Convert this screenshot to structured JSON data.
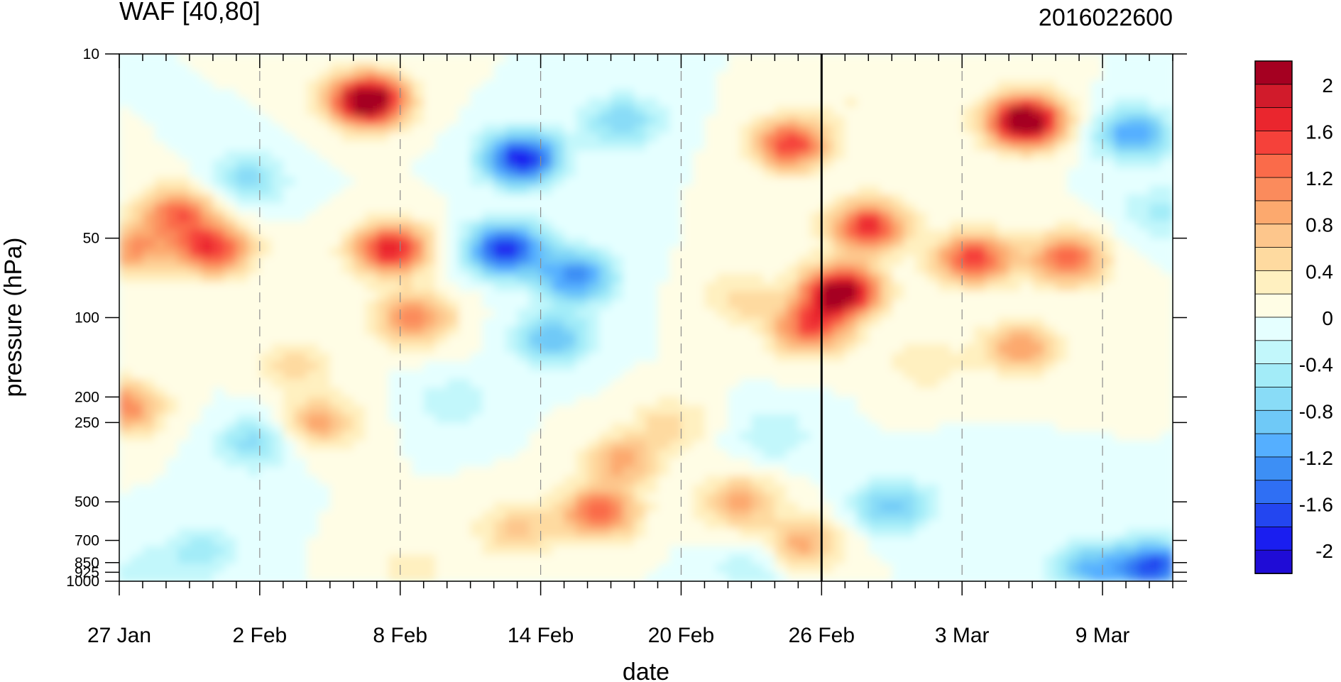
{
  "chart_data": {
    "type": "heatmap",
    "subtype": "filled-contour",
    "title": "WAF [40,80]",
    "right_title": "2016022600",
    "xlabel": "date",
    "ylabel": "pressure (hPa)",
    "x_ticks": [
      {
        "label": "27 Jan",
        "day": 0
      },
      {
        "label": "2 Feb",
        "day": 6
      },
      {
        "label": "8 Feb",
        "day": 12
      },
      {
        "label": "14 Feb",
        "day": 18
      },
      {
        "label": "20 Feb",
        "day": 24
      },
      {
        "label": "26 Feb",
        "day": 30
      },
      {
        "label": "3 Mar",
        "day": 36
      },
      {
        "label": "9 Mar",
        "day": 42
      }
    ],
    "x_range_days": [
      0,
      45
    ],
    "y_ticks": [
      {
        "label": "10",
        "p": 10
      },
      {
        "label": "50",
        "p": 50
      },
      {
        "label": "100",
        "p": 100
      },
      {
        "label": "200",
        "p": 200
      },
      {
        "label": "250",
        "p": 250
      },
      {
        "label": "500",
        "p": 500
      },
      {
        "label": "700",
        "p": 700
      },
      {
        "label": "850",
        "p": 850
      },
      {
        "label": "925",
        "p": 925
      },
      {
        "label": "1000",
        "p": 1000
      }
    ],
    "y_range_hpa": [
      1000,
      10
    ],
    "y_scale": "log",
    "vertical_marker_date": "26 Feb",
    "colorbar": {
      "labels": [
        "2",
        "1.6",
        "1.2",
        "0.8",
        "0.4",
        "0",
        "-0.4",
        "-0.8",
        "-1.2",
        "-1.6",
        "-2"
      ],
      "levels": [
        2.2,
        2.0,
        1.8,
        1.6,
        1.4,
        1.2,
        1.0,
        0.8,
        0.6,
        0.4,
        0.2,
        0.0,
        -0.2,
        -0.4,
        -0.6,
        -0.8,
        -1.0,
        -1.2,
        -1.4,
        -1.6,
        -1.8,
        -2.0,
        -2.2
      ],
      "colors": [
        "#a50021",
        "#d11b2b",
        "#ea262e",
        "#f5413a",
        "#fa6b4a",
        "#fb8b5c",
        "#fca96e",
        "#fdc68c",
        "#fedaa0",
        "#fff0c0",
        "#fffde5",
        "#e5ffff",
        "#c2f7fb",
        "#a3ecf8",
        "#89dcf7",
        "#6fc9f7",
        "#55afff",
        "#3d8ff5",
        "#2f6ff4",
        "#2346f0",
        "#1a1ef0",
        "#1f0cd6"
      ]
    },
    "anomalies": [
      {
        "day": 2.5,
        "p": 40,
        "v": 1.3
      },
      {
        "day": 4.0,
        "p": 55,
        "v": 1.6
      },
      {
        "day": 0.2,
        "p": 220,
        "v": 1.2
      },
      {
        "day": 0.5,
        "p": 55,
        "v": 1.0
      },
      {
        "day": 10.6,
        "p": 15,
        "v": 2.6
      },
      {
        "day": 11.6,
        "p": 55,
        "v": 1.8
      },
      {
        "day": 12.6,
        "p": 100,
        "v": 1.2
      },
      {
        "day": 8.5,
        "p": 250,
        "v": 0.9
      },
      {
        "day": 7.5,
        "p": 150,
        "v": 0.5
      },
      {
        "day": 5.5,
        "p": 30,
        "v": -0.7
      },
      {
        "day": 5.8,
        "p": 300,
        "v": -0.7
      },
      {
        "day": 17.2,
        "p": 25,
        "v": -2.0
      },
      {
        "day": 16.5,
        "p": 55,
        "v": -1.9
      },
      {
        "day": 19.5,
        "p": 70,
        "v": -1.4
      },
      {
        "day": 18.5,
        "p": 120,
        "v": -1.0
      },
      {
        "day": 21.5,
        "p": 18,
        "v": -0.8
      },
      {
        "day": 14.3,
        "p": 210,
        "v": -0.4
      },
      {
        "day": 20.5,
        "p": 550,
        "v": 1.4
      },
      {
        "day": 21.5,
        "p": 350,
        "v": 0.9
      },
      {
        "day": 17.0,
        "p": 640,
        "v": 0.7
      },
      {
        "day": 12.5,
        "p": 900,
        "v": 0.3
      },
      {
        "day": 23.5,
        "p": 250,
        "v": 0.5
      },
      {
        "day": 26.5,
        "p": 85,
        "v": 0.5
      },
      {
        "day": 28.0,
        "p": 280,
        "v": -0.4
      },
      {
        "day": 26.5,
        "p": 500,
        "v": 0.9
      },
      {
        "day": 28.7,
        "p": 22,
        "v": 1.6
      },
      {
        "day": 29.5,
        "p": 110,
        "v": 1.4
      },
      {
        "day": 30.8,
        "p": 80,
        "v": 2.4
      },
      {
        "day": 32.0,
        "p": 45,
        "v": 1.7
      },
      {
        "day": 29.2,
        "p": 720,
        "v": 0.9
      },
      {
        "day": 31.5,
        "p": 15,
        "v": 0.2
      },
      {
        "day": 38.7,
        "p": 18,
        "v": 2.6
      },
      {
        "day": 36.5,
        "p": 60,
        "v": 1.6
      },
      {
        "day": 40.5,
        "p": 60,
        "v": 1.4
      },
      {
        "day": 38.5,
        "p": 130,
        "v": 1.0
      },
      {
        "day": 34.5,
        "p": 150,
        "v": 0.4
      },
      {
        "day": 43.3,
        "p": 20,
        "v": -1.2
      },
      {
        "day": 44.5,
        "p": 40,
        "v": -0.5
      },
      {
        "day": 33.0,
        "p": 520,
        "v": -0.9
      },
      {
        "day": 36.5,
        "p": 420,
        "v": -0.2
      },
      {
        "day": 44.2,
        "p": 880,
        "v": -1.7
      },
      {
        "day": 41.5,
        "p": 900,
        "v": -1.0
      },
      {
        "day": 3.5,
        "p": 780,
        "v": -0.5
      },
      {
        "day": 1.0,
        "p": 920,
        "v": -0.3
      },
      {
        "day": 27.0,
        "p": 900,
        "v": -0.4
      }
    ]
  }
}
